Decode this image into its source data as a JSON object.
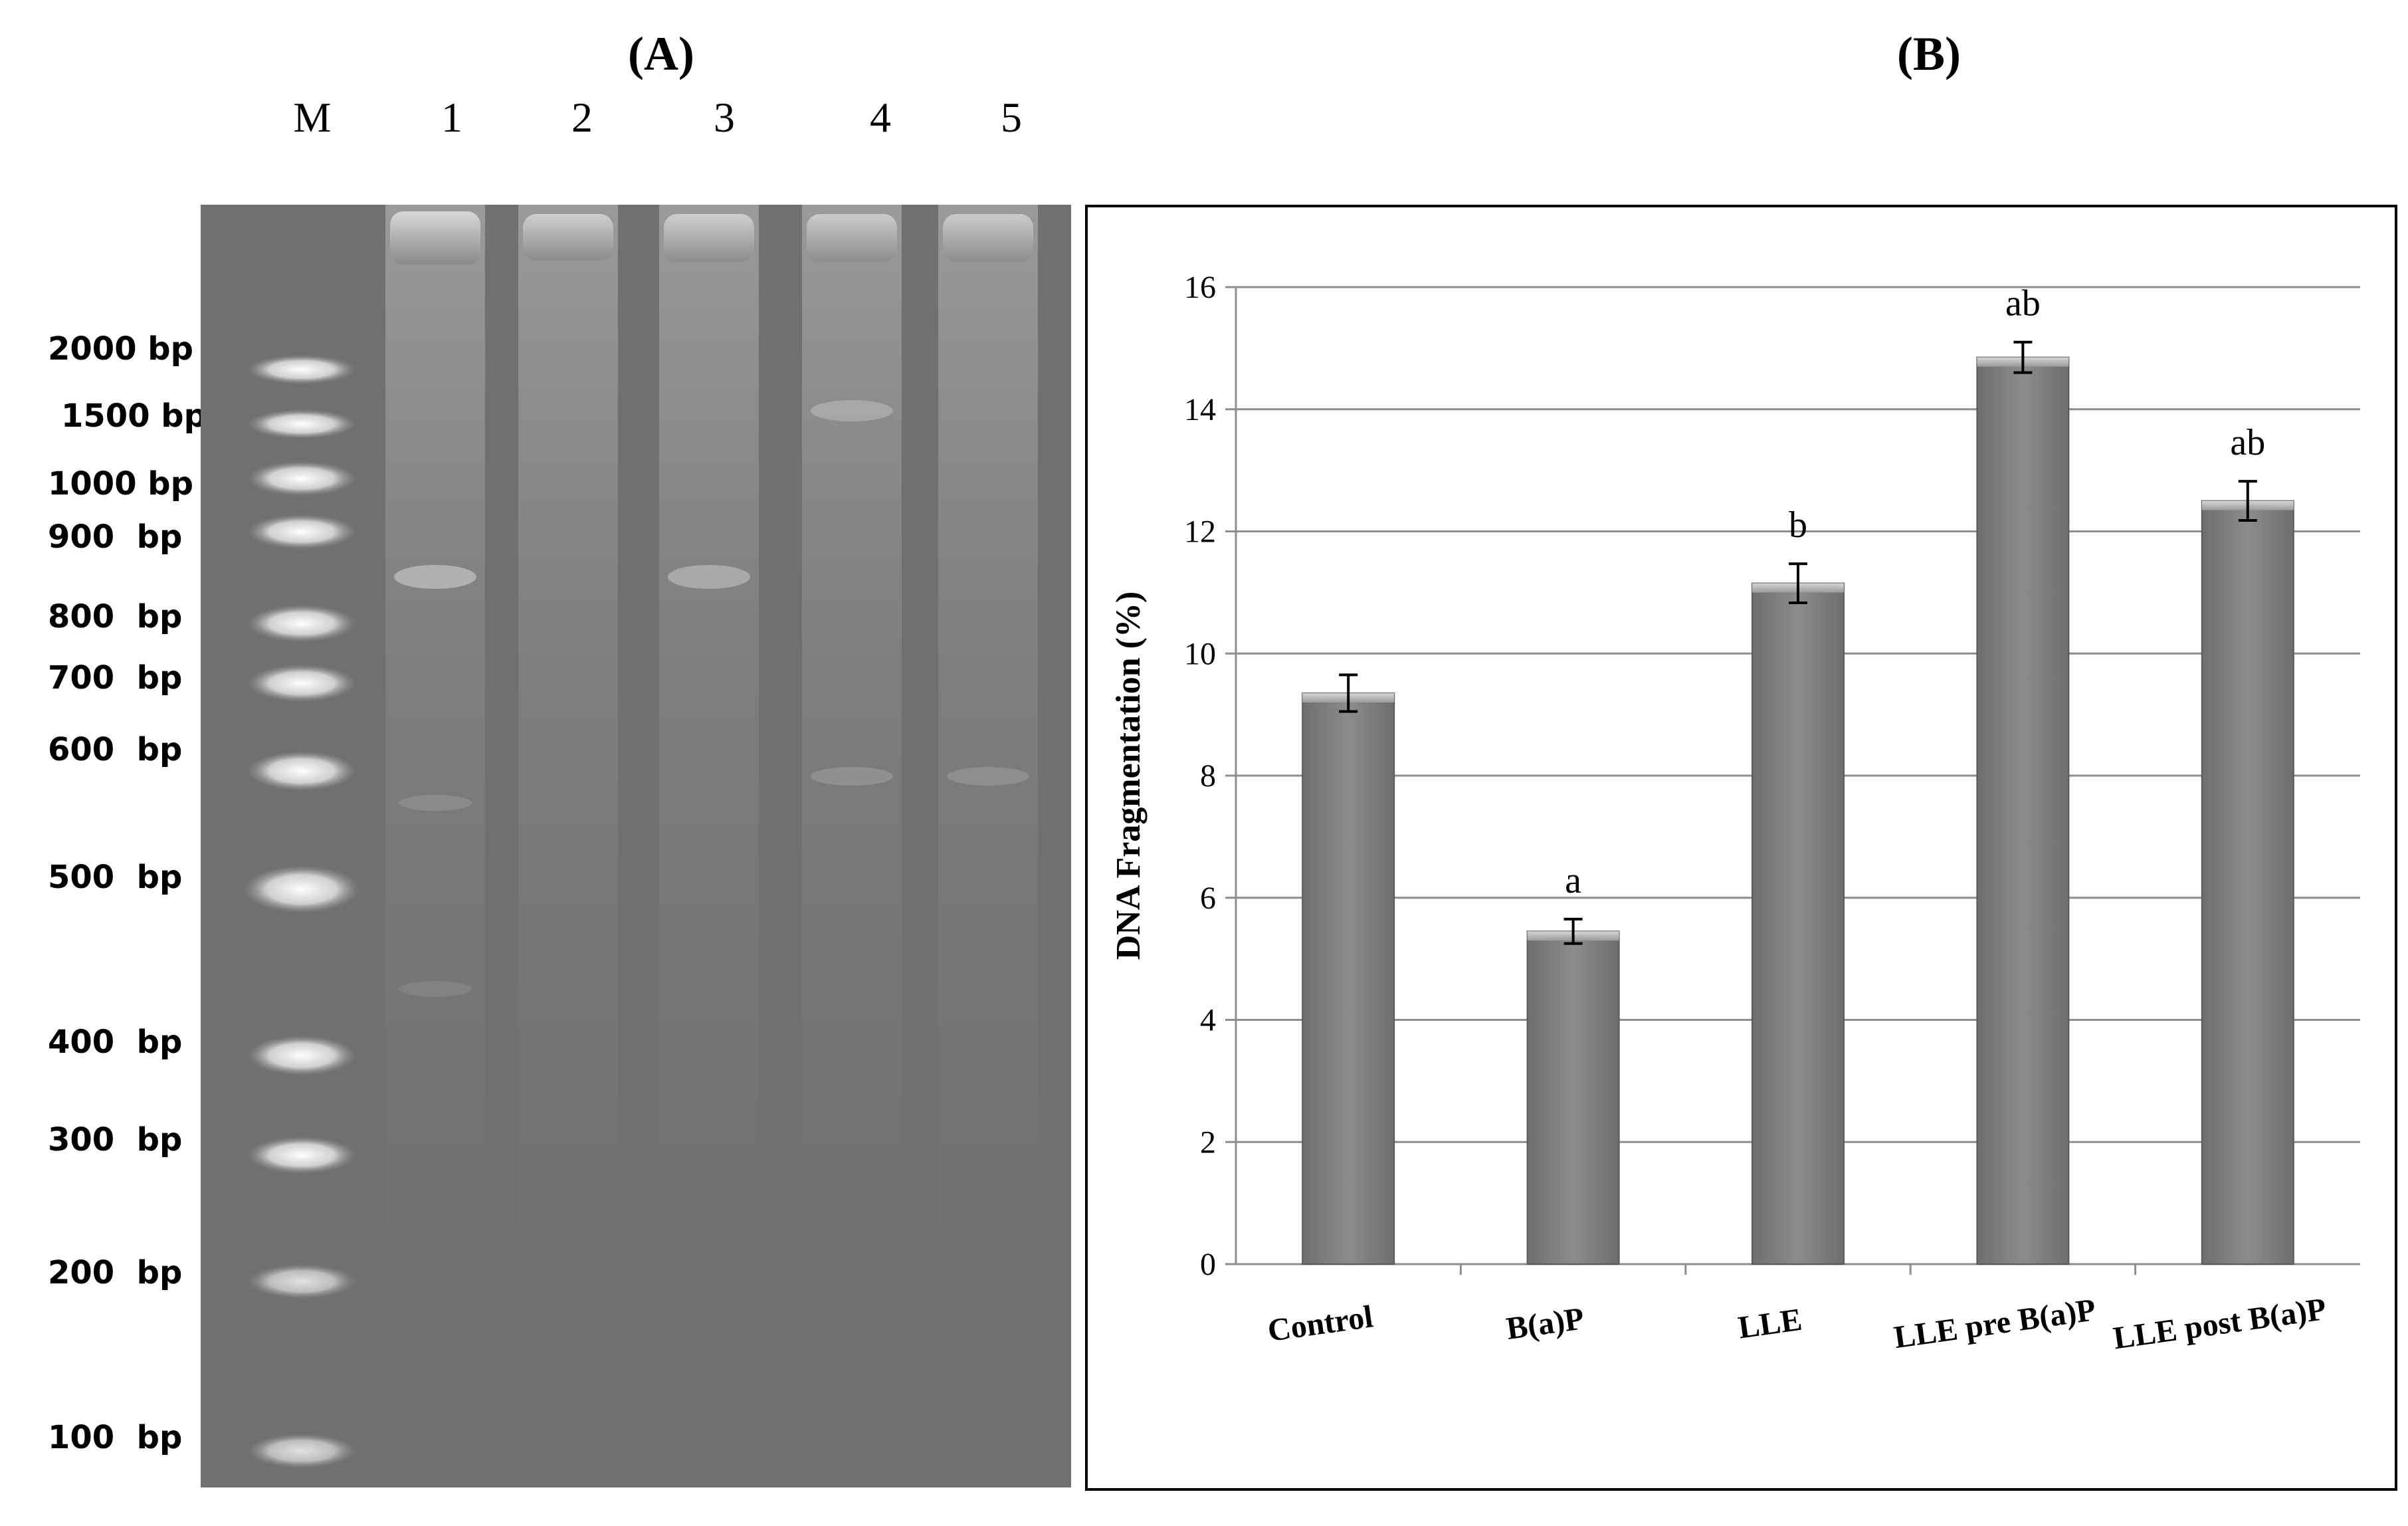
{
  "panel_a": {
    "title": "(A)",
    "lanes": [
      "M",
      "1",
      "2",
      "3",
      "4",
      "5"
    ],
    "ladder": [
      "2000 bp",
      "1500 bp",
      "1000 bp",
      "900  bp",
      "800  bp",
      "700  bp",
      "600  bp",
      "500  bp",
      "400  bp",
      "300  bp",
      "200  bp",
      "100  bp"
    ]
  },
  "panel_b": {
    "title": "(B)"
  },
  "chart_data": {
    "type": "bar",
    "title": "",
    "ylabel": "DNA Fragmentation (%)",
    "xlabel": "",
    "categories": [
      "Control",
      "B(a)P",
      "LLE",
      "LLE pre B(a)P",
      "LLE post B(a)P"
    ],
    "values": [
      9.35,
      5.45,
      11.15,
      14.85,
      12.5
    ],
    "errors": [
      0.3,
      0.2,
      0.32,
      0.25,
      0.32
    ],
    "annotations": [
      "",
      "a",
      "b",
      "ab",
      "ab"
    ],
    "ylim": [
      0,
      16
    ],
    "yticks": [
      0,
      2,
      4,
      6,
      8,
      10,
      12,
      14,
      16
    ],
    "grid": true,
    "bar_color": "#8c8c8c"
  }
}
